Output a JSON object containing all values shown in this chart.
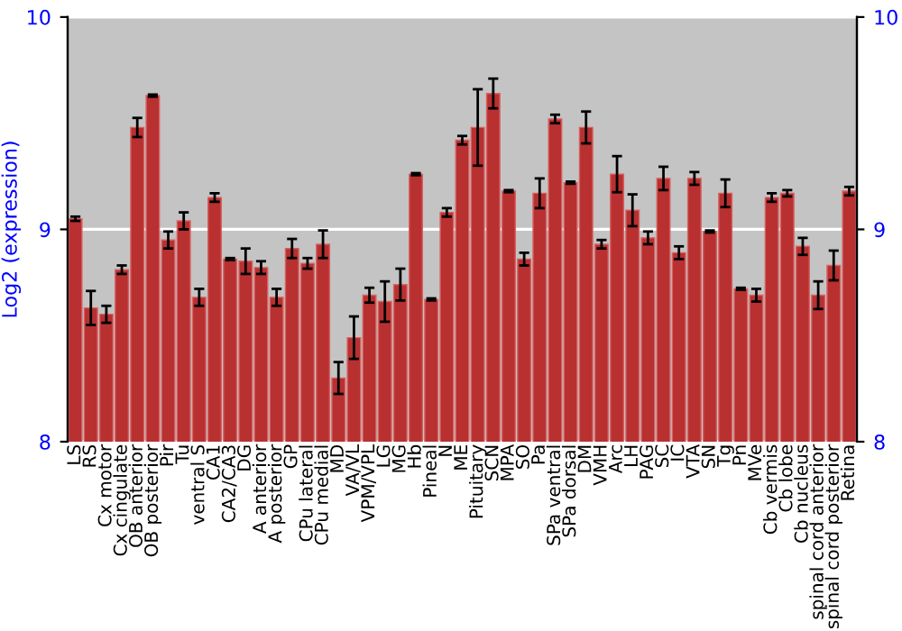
{
  "chart_data": {
    "type": "bar",
    "ylabel": "Log2 (expression)",
    "categories": [
      "LS",
      "RS",
      "Cx motor",
      "Cx cingulate",
      "OB anterior",
      "OB posterior",
      "Pir",
      "Tu",
      "ventral S",
      "CA1",
      "CA2/CA3",
      "DG",
      "A anterior",
      "A posterior",
      "GP",
      "CPu lateral",
      "CPu medial",
      "MD",
      "VA/VL",
      "VPM/VPL",
      "LG",
      "MG",
      "Hb",
      "Pineal",
      "N",
      "ME",
      "Pituitary",
      "SCN",
      "MPA",
      "SO",
      "Pa",
      "SPa ventral",
      "SPa dorsal",
      "DM",
      "VMH",
      "Arc",
      "LH",
      "PAG",
      "SC",
      "IC",
      "VTA",
      "SN",
      "Tg",
      "Pn",
      "MVe",
      "Cb vermis",
      "Cb lobe",
      "Cb nucleus",
      "spinal cord anterior",
      "spinal cord posterior",
      "Retina"
    ],
    "series": [
      {
        "color": "#b83030",
        "values": [
          9.05,
          8.63,
          8.6,
          8.81,
          9.48,
          9.63,
          8.95,
          9.04,
          8.68,
          9.15,
          8.86,
          8.85,
          8.82,
          8.68,
          8.91,
          8.84,
          8.93,
          8.3,
          8.49,
          8.69,
          8.66,
          8.74,
          9.26,
          8.67,
          9.08,
          9.42,
          9.48,
          9.64,
          9.18,
          8.86,
          9.17,
          9.52,
          9.22,
          9.48,
          8.93,
          9.26,
          9.09,
          8.96,
          9.24,
          8.89,
          9.24,
          8.99,
          9.17,
          8.72,
          8.69,
          9.15,
          9.17,
          8.92,
          8.69,
          8.83,
          9.18
        ],
        "errors": [
          0.01,
          0.08,
          0.04,
          0.02,
          0.045,
          0.005,
          0.04,
          0.04,
          0.04,
          0.02,
          0.005,
          0.06,
          0.03,
          0.04,
          0.045,
          0.025,
          0.065,
          0.075,
          0.1,
          0.035,
          0.095,
          0.075,
          0.005,
          0.005,
          0.02,
          0.02,
          0.18,
          0.07,
          0.005,
          0.03,
          0.07,
          0.02,
          0.005,
          0.075,
          0.02,
          0.085,
          0.075,
          0.03,
          0.055,
          0.03,
          0.03,
          0.005,
          0.065,
          0.005,
          0.03,
          0.02,
          0.015,
          0.04,
          0.065,
          0.07,
          0.02
        ]
      }
    ],
    "ylim": [
      8,
      10
    ],
    "yticks": [
      8,
      9,
      10
    ],
    "y2lim": [
      8,
      10
    ],
    "y2ticks": [
      8,
      9,
      10
    ],
    "grid": "y"
  }
}
